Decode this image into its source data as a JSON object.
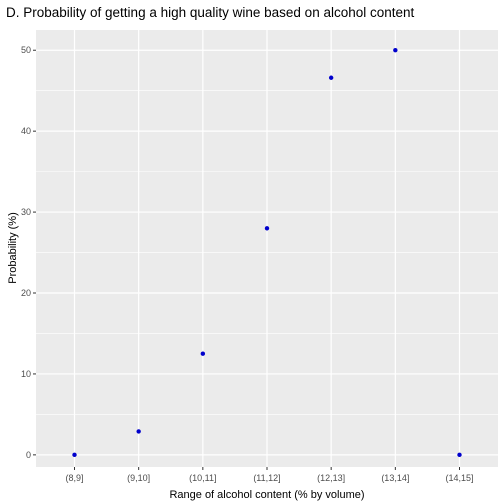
{
  "chart_data": {
    "type": "scatter",
    "title": "D. Probability of getting a high quality wine based on alcohol content",
    "xlabel": "Range of alcohol content (% by volume)",
    "ylabel": "Probability (%)",
    "categories": [
      "(8,9]",
      "(9,10]",
      "(10,11]",
      "(11,12]",
      "(12,13]",
      "(13,14]",
      "(14,15]"
    ],
    "values": [
      0,
      2.9,
      12.5,
      28.0,
      46.6,
      50.0,
      0
    ],
    "ylim": [
      -1.5,
      52.5
    ],
    "yticks": [
      0,
      10,
      20,
      30,
      40,
      50
    ],
    "grid": true,
    "point_color": "#0000cc",
    "panel_color": "#ebebeb",
    "grid_color": "#ffffff"
  }
}
